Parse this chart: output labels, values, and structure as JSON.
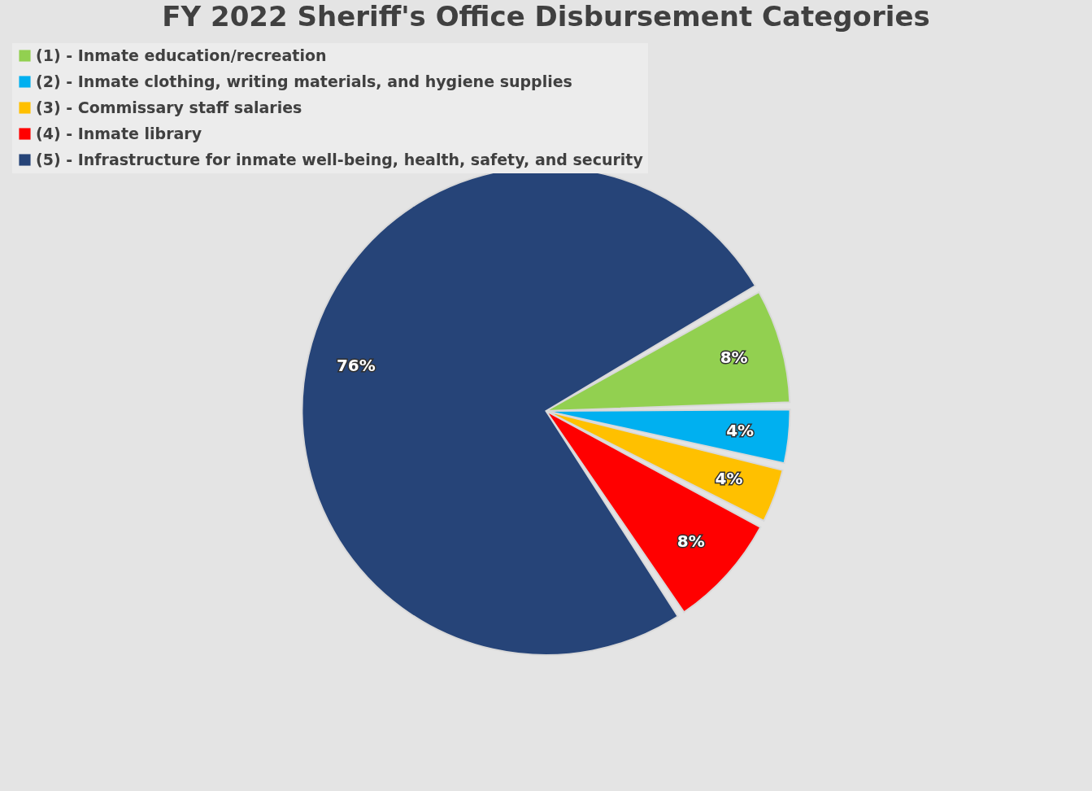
{
  "chart_data": {
    "type": "pie",
    "title": "FY 2022 Sheriff's Office Disbursement Categories",
    "categories": [
      "(1) - Inmate education/recreation",
      "(2) - Inmate clothing, writing materials, and hygiene supplies",
      "(3) - Commissary staff salaries",
      "(4) - Inmate library",
      "(5) - Infrastructure for inmate well-being, health, safety, and security"
    ],
    "values": [
      8,
      4,
      4,
      8,
      76
    ],
    "colors": [
      "#92d050",
      "#00b0f0",
      "#ffc000",
      "#ff0000",
      "#264478"
    ],
    "value_labels": [
      "8%",
      "4%",
      "4%",
      "8%",
      "76%"
    ],
    "legend": "top left"
  }
}
